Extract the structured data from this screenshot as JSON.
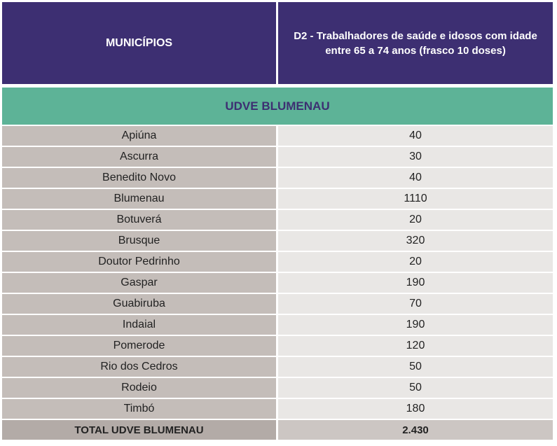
{
  "header": {
    "col1": "MUNICÍPIOS",
    "col2": "D2 - Trabalhadores de saúde e idosos com idade entre 65 a 74 anos (frasco 10 doses)"
  },
  "section": {
    "title": "UDVE BLUMENAU"
  },
  "rows": [
    {
      "municipio": "Apiúna",
      "doses": "40"
    },
    {
      "municipio": "Ascurra",
      "doses": "30"
    },
    {
      "municipio": "Benedito Novo",
      "doses": "40"
    },
    {
      "municipio": "Blumenau",
      "doses": "1110"
    },
    {
      "municipio": "Botuverá",
      "doses": "20"
    },
    {
      "municipio": "Brusque",
      "doses": "320"
    },
    {
      "municipio": "Doutor Pedrinho",
      "doses": "20"
    },
    {
      "municipio": "Gaspar",
      "doses": "190"
    },
    {
      "municipio": "Guabiruba",
      "doses": "70"
    },
    {
      "municipio": "Indaial",
      "doses": "190"
    },
    {
      "municipio": "Pomerode",
      "doses": "120"
    },
    {
      "municipio": "Rio dos Cedros",
      "doses": "50"
    },
    {
      "municipio": "Rodeio",
      "doses": "50"
    },
    {
      "municipio": "Timbó",
      "doses": "180"
    }
  ],
  "total": {
    "label": "TOTAL UDVE BLUMENAU",
    "value": "2.430"
  },
  "colors": {
    "header_bg": "#3d2f72",
    "section_bg": "#5db397",
    "left_cell_bg": "#c4bdb9",
    "right_cell_bg": "#e9e7e5"
  }
}
